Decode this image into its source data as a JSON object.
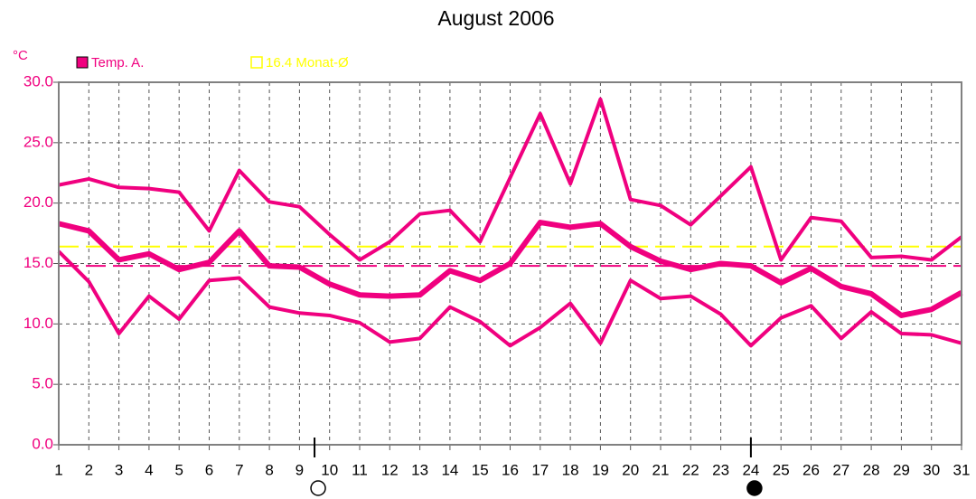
{
  "chart_data": {
    "type": "line",
    "title": "August 2006",
    "y_unit": "°C",
    "legend": [
      {
        "label": "Temp. A.",
        "color": "#f0007f",
        "filled": true
      },
      {
        "label": "16.4 Monat-Ø",
        "color": "#ffff00",
        "filled": false
      }
    ],
    "x": [
      1,
      2,
      3,
      4,
      5,
      6,
      7,
      8,
      9,
      10,
      11,
      12,
      13,
      14,
      15,
      16,
      17,
      18,
      19,
      20,
      21,
      22,
      23,
      24,
      25,
      26,
      27,
      28,
      29,
      30,
      31
    ],
    "xlim": [
      1,
      31
    ],
    "xticks": [
      1,
      2,
      3,
      4,
      5,
      6,
      7,
      8,
      9,
      10,
      11,
      12,
      13,
      14,
      15,
      16,
      17,
      18,
      19,
      20,
      21,
      22,
      23,
      24,
      25,
      26,
      27,
      28,
      29,
      30,
      31
    ],
    "ylim": [
      0,
      30
    ],
    "yticks": [
      {
        "value": 0,
        "label": "0.0"
      },
      {
        "value": 5,
        "label": "5.0"
      },
      {
        "value": 10,
        "label": "10.0"
      },
      {
        "value": 15,
        "label": "15.0"
      },
      {
        "value": 20,
        "label": "20.0"
      },
      {
        "value": 25,
        "label": "25.0"
      },
      {
        "value": 30,
        "label": "30.0"
      }
    ],
    "grid": true,
    "series": [
      {
        "color": "#f0007f",
        "width": 4,
        "values": [
          21.5,
          22.0,
          21.3,
          21.2,
          20.9,
          17.7,
          22.7,
          20.1,
          19.7,
          17.4,
          15.3,
          16.8,
          19.1,
          19.4,
          16.8,
          22.1,
          27.4,
          21.6,
          28.6,
          20.3,
          19.8,
          18.2,
          20.6,
          23.0,
          15.3,
          18.8,
          18.5,
          15.5,
          15.6,
          15.3,
          17.2
        ]
      },
      {
        "color": "#f0007f",
        "width": 6,
        "values": [
          18.3,
          17.7,
          15.3,
          15.8,
          14.5,
          15.1,
          17.7,
          14.8,
          14.7,
          13.3,
          12.4,
          12.3,
          12.4,
          14.4,
          13.6,
          15.0,
          18.4,
          18.0,
          18.3,
          16.4,
          15.2,
          14.5,
          15.0,
          14.8,
          13.4,
          14.6,
          13.1,
          12.5,
          10.7,
          11.2,
          12.6
        ]
      },
      {
        "color": "#f0007f",
        "width": 4,
        "values": [
          16.0,
          13.5,
          9.2,
          12.3,
          10.4,
          13.6,
          13.8,
          11.4,
          10.9,
          10.7,
          10.1,
          8.5,
          8.8,
          11.4,
          10.2,
          8.2,
          9.7,
          11.7,
          8.4,
          13.6,
          12.1,
          12.3,
          10.8,
          8.2,
          10.5,
          11.5,
          8.8,
          11.0,
          9.2,
          9.1,
          8.4
        ]
      }
    ],
    "reference_lines": [
      {
        "value": 16.4,
        "color": "#ffff00"
      },
      {
        "value": 14.8,
        "color": "#f0007f"
      }
    ],
    "moons": [
      {
        "x": 9.5,
        "filled": false
      },
      {
        "x": 24,
        "filled": true
      }
    ]
  }
}
